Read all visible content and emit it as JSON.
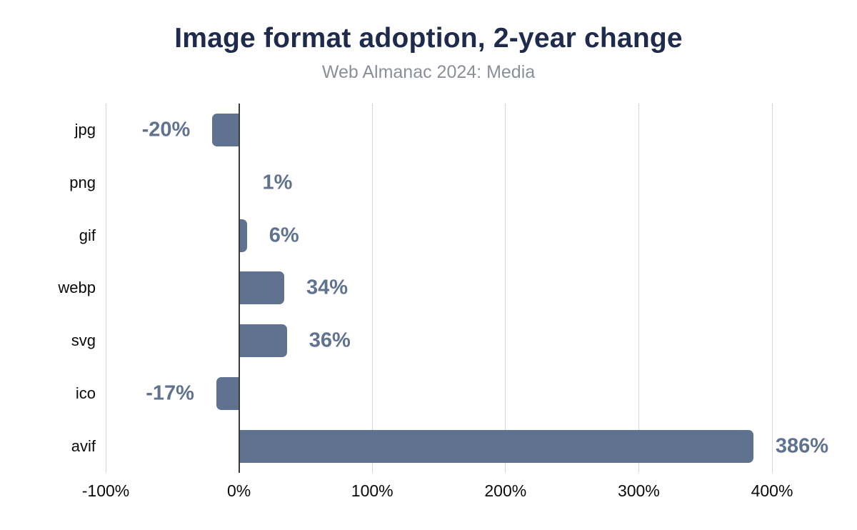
{
  "title": "Image format adoption, 2-year change",
  "subtitle": "Web Almanac 2024: Media",
  "colors": {
    "bar": "#5f728f",
    "value_label": "#5f728f",
    "title": "#1f2b4c",
    "subtitle": "#8b9098",
    "gridline": "#d4d4d6",
    "zero_line": "#3b3b3b",
    "category_label": "#0a0a0a",
    "tick_label": "#0a0a0a",
    "background": "#ffffff"
  },
  "chart_data": {
    "type": "bar",
    "orientation": "horizontal",
    "title": "Image format adoption, 2-year change",
    "subtitle": "Web Almanac 2024: Media",
    "categories": [
      "jpg",
      "png",
      "gif",
      "webp",
      "svg",
      "ico",
      "avif"
    ],
    "values": [
      -20,
      1,
      6,
      34,
      36,
      -17,
      386
    ],
    "value_labels": [
      "-20%",
      "1%",
      "6%",
      "34%",
      "36%",
      "-17%",
      "386%"
    ],
    "xlabel": "",
    "ylabel": "",
    "xlim": [
      -100,
      400
    ],
    "x_tick_values": [
      -100,
      0,
      100,
      200,
      300,
      400
    ],
    "x_tick_labels": [
      "-100%",
      "0%",
      "100%",
      "200%",
      "300%",
      "400%"
    ],
    "grid": true,
    "legend": false
  }
}
